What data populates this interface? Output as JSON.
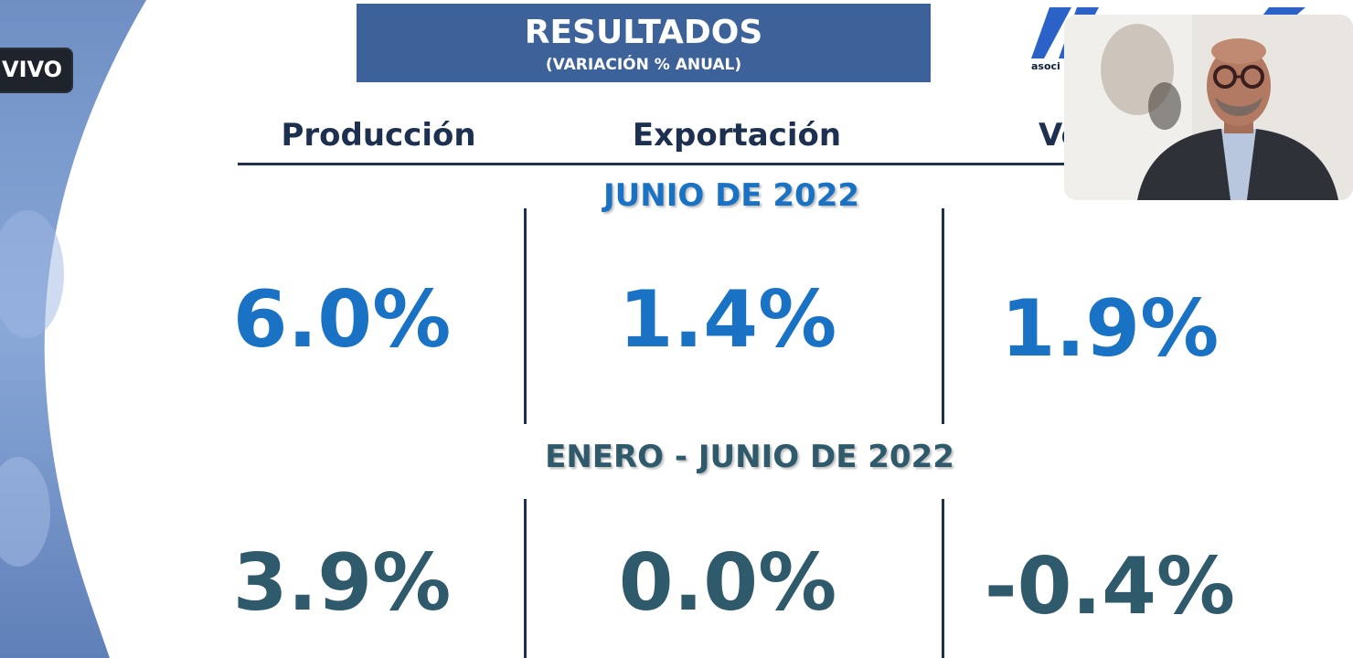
{
  "live_badge": "VIVO",
  "banner": {
    "title": "RESULTADOS",
    "subtitle": "(VARIACIÓN % ANUAL)"
  },
  "logo": {
    "text": "asoci",
    "brand_color": "#2a62c8"
  },
  "columns": [
    {
      "label": "Producción"
    },
    {
      "label": "Exportación"
    },
    {
      "label": "Ve"
    }
  ],
  "sections": {
    "junio": {
      "label": "JUNIO DE 2022",
      "color": "#1a72c4",
      "values": [
        "6.0%",
        "1.4%",
        "1.9%"
      ]
    },
    "ytd": {
      "label": "ENERO - JUNIO DE 2022",
      "color": "#2f5a6c",
      "values": [
        "3.9%",
        "0.0%",
        "-0.4%"
      ]
    }
  },
  "colors": {
    "banner_bg": "#3d6199",
    "heading": "#1d3050",
    "left_panel": "#7f9fd0"
  }
}
